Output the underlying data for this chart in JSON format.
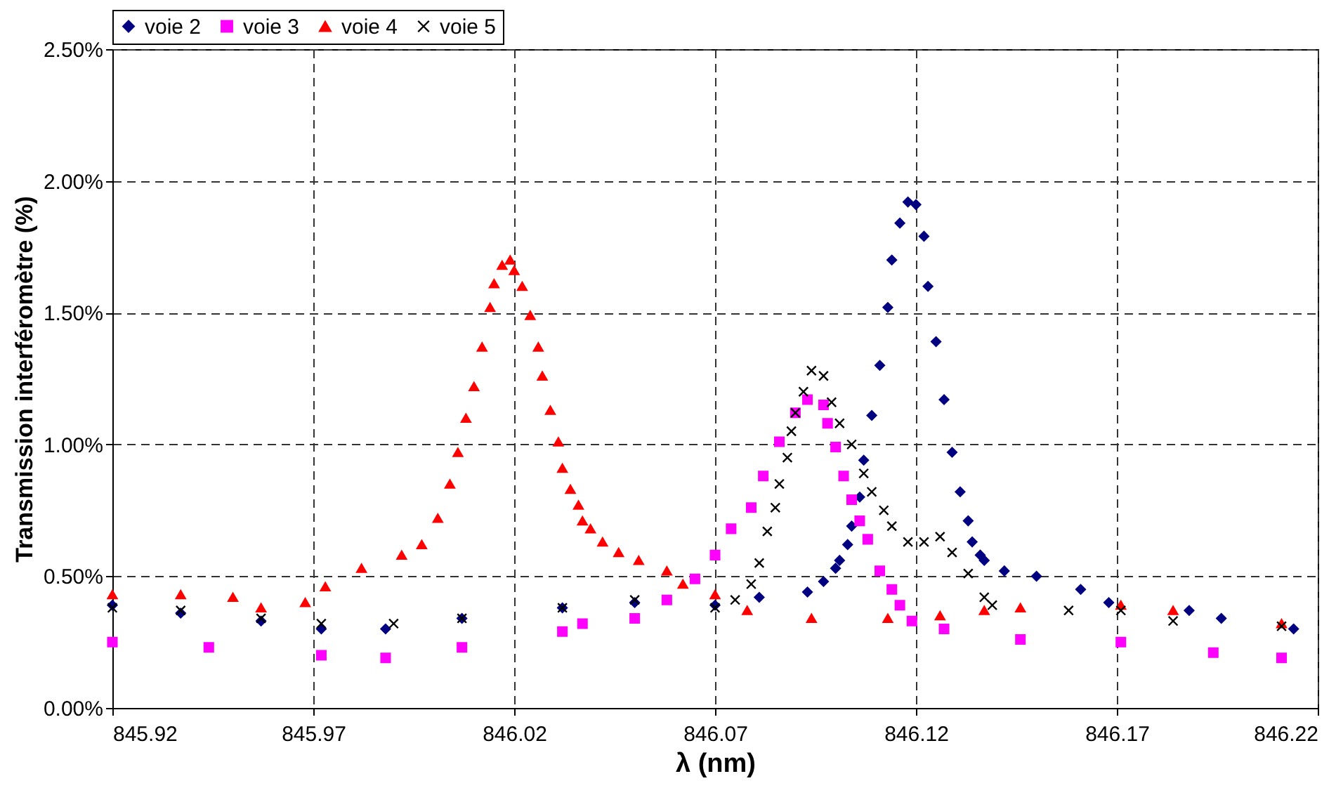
{
  "chart_data": {
    "type": "scatter",
    "xlabel": "λ (nm)",
    "ylabel": "Transmission interféromètre (%)",
    "xlim": [
      845.92,
      846.22
    ],
    "xticks": [
      845.92,
      845.97,
      846.02,
      846.07,
      846.12,
      846.17,
      846.22
    ],
    "ylim": [
      0,
      2.5
    ],
    "yticks": [
      {
        "value": 0,
        "label": "0.00%"
      },
      {
        "value": 0.5,
        "label": "0.50%"
      },
      {
        "value": 1,
        "label": "1.00%"
      },
      {
        "value": 1.5,
        "label": "1.50%"
      },
      {
        "value": 2,
        "label": "2.00%"
      },
      {
        "value": 2.5,
        "label": "2.50%"
      }
    ],
    "grid": true,
    "legend": "top left",
    "line_style": "dashed",
    "series": [
      {
        "name": "voie 2",
        "color": "#000080",
        "marker": "diamond",
        "x": [
          845.92,
          845.937,
          845.957,
          845.972,
          845.988,
          846.007,
          846.032,
          846.05,
          846.07,
          846.081,
          846.093,
          846.097,
          846.1,
          846.101,
          846.103,
          846.104,
          846.106,
          846.107,
          846.109,
          846.111,
          846.113,
          846.114,
          846.116,
          846.118,
          846.12,
          846.122,
          846.123,
          846.125,
          846.127,
          846.129,
          846.131,
          846.133,
          846.134,
          846.136,
          846.137,
          846.142,
          846.15,
          846.161,
          846.168,
          846.188,
          846.196,
          846.214
        ],
        "values": [
          0.39,
          0.36,
          0.33,
          0.3,
          0.3,
          0.34,
          0.38,
          0.4,
          0.39,
          0.42,
          0.44,
          0.48,
          0.53,
          0.56,
          0.62,
          0.69,
          0.8,
          0.94,
          1.11,
          1.3,
          1.52,
          1.7,
          1.84,
          1.92,
          1.91,
          1.79,
          1.6,
          1.39,
          1.17,
          0.97,
          0.82,
          0.71,
          0.63,
          0.58,
          0.56,
          0.52,
          0.5,
          0.45,
          0.4,
          0.37,
          0.34,
          0.3
        ]
      },
      {
        "name": "voie 3",
        "color": "#ff00ff",
        "marker": "square",
        "x": [
          845.92,
          845.944,
          845.972,
          845.988,
          846.007,
          846.032,
          846.037,
          846.05,
          846.058,
          846.065,
          846.07,
          846.074,
          846.079,
          846.082,
          846.086,
          846.09,
          846.093,
          846.097,
          846.098,
          846.1,
          846.102,
          846.104,
          846.106,
          846.108,
          846.111,
          846.114,
          846.116,
          846.119,
          846.127,
          846.146,
          846.171,
          846.194,
          846.211
        ],
        "values": [
          0.25,
          0.23,
          0.2,
          0.19,
          0.23,
          0.29,
          0.32,
          0.34,
          0.41,
          0.49,
          0.58,
          0.68,
          0.76,
          0.88,
          1.01,
          1.12,
          1.17,
          1.15,
          1.08,
          0.99,
          0.88,
          0.79,
          0.71,
          0.64,
          0.52,
          0.45,
          0.39,
          0.33,
          0.3,
          0.26,
          0.25,
          0.21,
          0.19
        ]
      },
      {
        "name": "voie 4",
        "color": "#ff0000",
        "marker": "triangle",
        "x": [
          845.92,
          845.937,
          845.95,
          845.957,
          845.968,
          845.973,
          845.982,
          845.992,
          845.997,
          846.001,
          846.004,
          846.006,
          846.008,
          846.01,
          846.012,
          846.014,
          846.015,
          846.017,
          846.019,
          846.02,
          846.022,
          846.024,
          846.026,
          846.027,
          846.029,
          846.031,
          846.032,
          846.034,
          846.036,
          846.037,
          846.039,
          846.042,
          846.046,
          846.051,
          846.058,
          846.062,
          846.07,
          846.078,
          846.094,
          846.113,
          846.126,
          846.137,
          846.146,
          846.171,
          846.184,
          846.211
        ],
        "values": [
          0.43,
          0.43,
          0.42,
          0.38,
          0.4,
          0.46,
          0.53,
          0.58,
          0.62,
          0.72,
          0.85,
          0.97,
          1.1,
          1.22,
          1.37,
          1.52,
          1.61,
          1.68,
          1.7,
          1.66,
          1.6,
          1.49,
          1.37,
          1.26,
          1.13,
          1.01,
          0.91,
          0.83,
          0.77,
          0.71,
          0.68,
          0.63,
          0.59,
          0.56,
          0.52,
          0.47,
          0.43,
          0.37,
          0.34,
          0.34,
          0.35,
          0.37,
          0.38,
          0.39,
          0.37,
          0.32
        ]
      },
      {
        "name": "voie 5",
        "color": "#000000",
        "marker": "cross",
        "x": [
          845.92,
          845.937,
          845.957,
          845.972,
          845.99,
          846.007,
          846.032,
          846.05,
          846.07,
          846.075,
          846.079,
          846.081,
          846.083,
          846.085,
          846.086,
          846.088,
          846.089,
          846.09,
          846.092,
          846.094,
          846.097,
          846.099,
          846.101,
          846.104,
          846.107,
          846.109,
          846.112,
          846.114,
          846.118,
          846.122,
          846.126,
          846.129,
          846.133,
          846.137,
          846.139,
          846.158,
          846.171,
          846.184,
          846.211
        ],
        "values": [
          0.38,
          0.37,
          0.34,
          0.32,
          0.32,
          0.34,
          0.38,
          0.41,
          0.38,
          0.41,
          0.47,
          0.55,
          0.67,
          0.76,
          0.85,
          0.95,
          1.05,
          1.12,
          1.2,
          1.28,
          1.26,
          1.16,
          1.08,
          1.0,
          0.89,
          0.82,
          0.75,
          0.69,
          0.63,
          0.63,
          0.65,
          0.59,
          0.51,
          0.42,
          0.39,
          0.37,
          0.37,
          0.33,
          0.31
        ]
      }
    ]
  }
}
